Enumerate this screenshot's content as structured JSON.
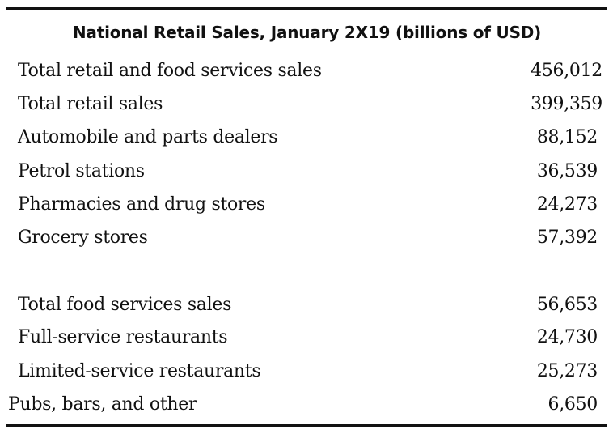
{
  "table": {
    "title": "National Retail Sales, January 2X19 (billions of USD)",
    "rows": [
      {
        "label": "Total retail and food services sales",
        "value": "456,012"
      },
      {
        "label": "Total retail sales",
        "value": "399,359"
      },
      {
        "label": "Automobile and parts dealers",
        "value": "88,152"
      },
      {
        "label": "Petrol stations",
        "value": "36,539"
      },
      {
        "label": "Pharmacies and drug stores",
        "value": "24,273"
      },
      {
        "label": "Grocery stores",
        "value": "57,392"
      },
      {
        "label": "Total food services sales",
        "value": "56,653"
      },
      {
        "label": "Full-service restaurants",
        "value": "24,730"
      },
      {
        "label": "Limited-service restaurants",
        "value": "25,273"
      },
      {
        "label": "Pubs, bars, and other",
        "value": "6,650"
      }
    ]
  }
}
